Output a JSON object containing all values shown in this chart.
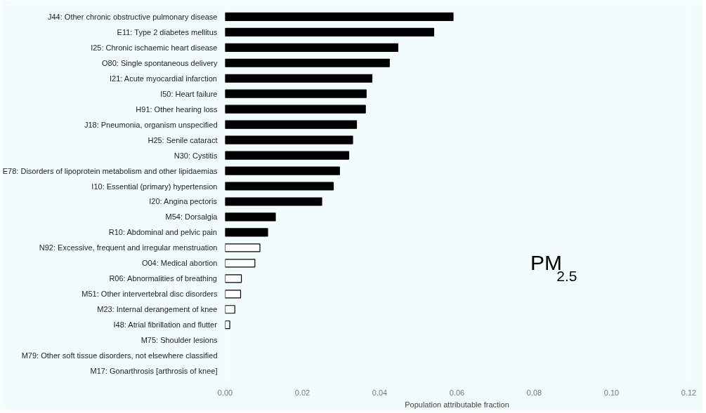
{
  "chart_data": {
    "type": "bar",
    "orientation": "horizontal",
    "xlabel": "Population attributable fraction",
    "categories": [
      "J44: Other chronic obstructive pulmonary disease",
      "E11: Type 2 diabetes mellitus",
      "I25: Chronic ischaemic heart disease",
      "O80: Single spontaneous delivery",
      "I21: Acute myocardial infarction",
      "I50: Heart failure",
      "H91: Other hearing loss",
      "J18: Pneumonia, organism unspecified",
      "H25: Senile cataract",
      "N30: Cystitis",
      "E78: Disorders of lipoprotein metabolism and other lipidaemias",
      "I10: Essential (primary) hypertension",
      "I20: Angina pectoris",
      "M54: Dorsalgia",
      "R10: Abdominal and pelvic pain",
      "N92: Excessive, frequent and irregular menstruation",
      "O04: Medical abortion",
      "R06: Abnormalities of breathing",
      "M51: Other intervertebral disc disorders",
      "M23: Internal derangement of knee",
      "I48: Atrial fibrillation and flutter",
      "M75: Shoulder lesions",
      "M79: Other soft tissue disorders, not elsewhere classified",
      "M17: Gonarthrosis [arthrosis of knee]"
    ],
    "values": [
      0.059,
      0.054,
      0.0447,
      0.0425,
      0.038,
      0.0365,
      0.0363,
      0.034,
      0.033,
      0.032,
      0.0296,
      0.028,
      0.025,
      0.013,
      0.011,
      0.009,
      0.0077,
      0.0042,
      0.004,
      0.0025,
      0.0012,
      0,
      0,
      0
    ],
    "colors": [
      "#000000",
      "#000000",
      "#000000",
      "#000000",
      "#000000",
      "#000000",
      "#000000",
      "#000000",
      "#000000",
      "#000000",
      "#000000",
      "#000000",
      "#000000",
      "#000000",
      "#000000",
      "#ffffff",
      "#ffffff",
      "#ffffff",
      "#ffffff",
      "#ffffff",
      "#ffffff",
      "#ffffff",
      "#ffffff",
      "#ffffff"
    ],
    "xlim": [
      0,
      0.12
    ],
    "xticks": [
      {
        "value": 0,
        "label": "0.00"
      },
      {
        "value": 0.02,
        "label": "0.02"
      },
      {
        "value": 0.04,
        "label": "0.04"
      },
      {
        "value": 0.06,
        "label": "0.06"
      },
      {
        "value": 0.08,
        "label": "0.08"
      },
      {
        "value": 0.1,
        "label": "0.10"
      },
      {
        "value": 0.12,
        "label": "0.12"
      }
    ],
    "grid": false,
    "annotations": [
      "PM$_{2.5}$"
    ]
  }
}
